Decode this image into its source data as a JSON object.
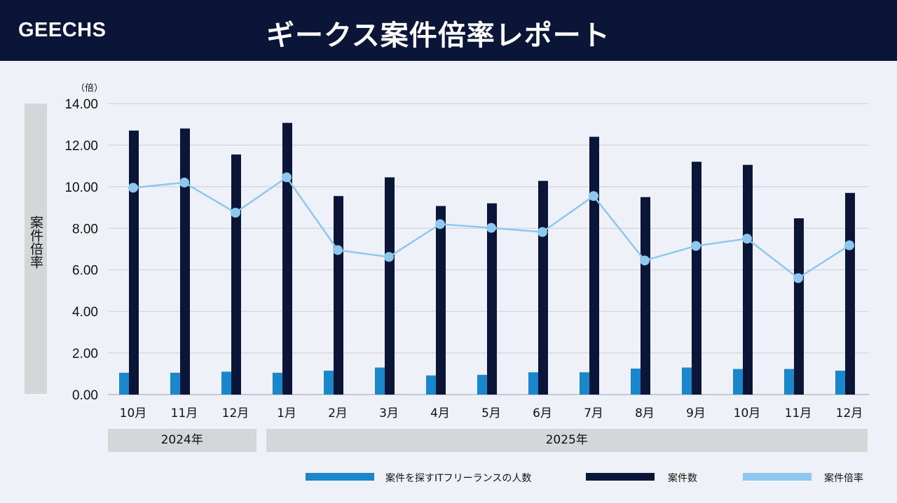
{
  "header": {
    "brand": "GEECHS",
    "title": "ギークス案件倍率レポート"
  },
  "colors": {
    "header_bg": "#0b1537",
    "people_bar": "#1a86cc",
    "jobs_bar": "#0b1537",
    "ratio_line": "#8dc8f0"
  },
  "chart_data": {
    "type": "bar",
    "title": "ギークス案件倍率レポート",
    "ylabel": "案件倍率",
    "yunit": "（倍）",
    "ylim": [
      0,
      14
    ],
    "yticks": [
      "0.00",
      "2.00",
      "4.00",
      "6.00",
      "8.00",
      "10.00",
      "12.00",
      "14.00"
    ],
    "grid": true,
    "legend_position": "bottom-right",
    "categories": [
      "10月",
      "11月",
      "12月",
      "1月",
      "2月",
      "3月",
      "4月",
      "5月",
      "6月",
      "7月",
      "8月",
      "9月",
      "10月",
      "11月",
      "12月"
    ],
    "year_groups": [
      {
        "label": "2024年",
        "count": 3
      },
      {
        "label": "2025年",
        "count": 12
      }
    ],
    "series": [
      {
        "name": "案件を探すITフリーランスの人数",
        "type": "bar",
        "values": [
          1.05,
          1.05,
          1.1,
          1.05,
          1.15,
          1.3,
          0.92,
          0.95,
          1.07,
          1.07,
          1.25,
          1.3,
          1.23,
          1.23,
          1.15
        ]
      },
      {
        "name": "案件数",
        "type": "bar",
        "values": [
          12.7,
          12.8,
          11.55,
          13.07,
          9.55,
          10.45,
          9.07,
          9.2,
          10.28,
          12.4,
          9.5,
          11.2,
          11.05,
          8.48,
          9.7
        ]
      },
      {
        "name": "案件倍率",
        "type": "line",
        "values": [
          9.95,
          10.2,
          8.75,
          10.45,
          6.95,
          6.62,
          8.2,
          8.02,
          7.82,
          9.55,
          6.45,
          7.15,
          7.5,
          5.6,
          7.18
        ]
      }
    ]
  }
}
